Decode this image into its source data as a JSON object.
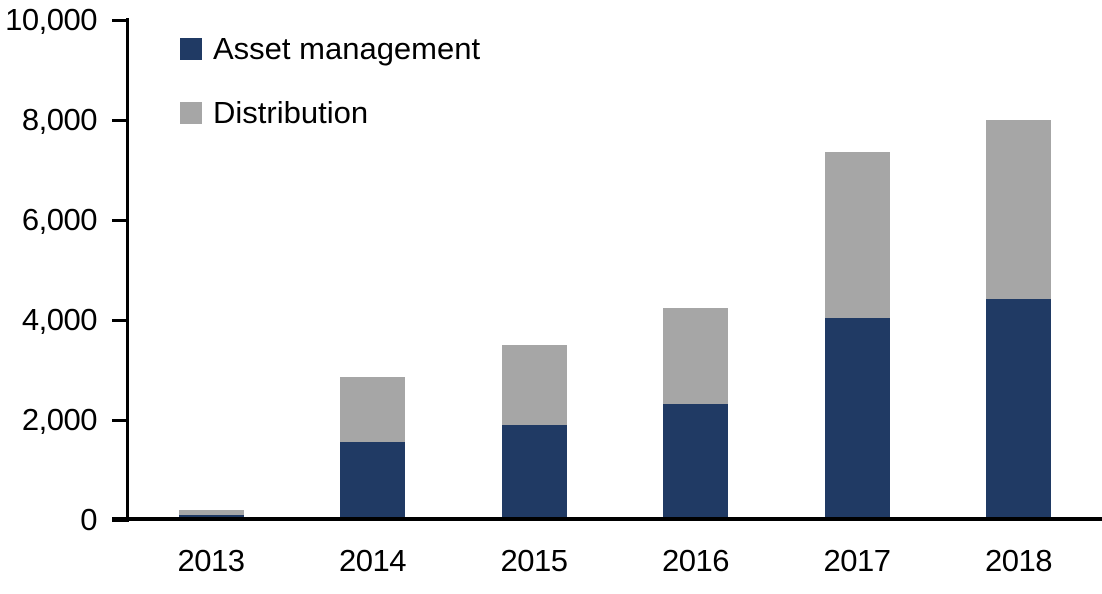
{
  "chart_data": {
    "type": "bar",
    "stacked": true,
    "title": "",
    "xlabel": "",
    "ylabel": "",
    "grid": false,
    "legend_position": "top-left",
    "categories": [
      "2013",
      "2014",
      "2015",
      "2016",
      "2017",
      "2018"
    ],
    "series": [
      {
        "name": "Asset management",
        "color": "#203A64",
        "values": [
          100,
          1560,
          1900,
          2320,
          4040,
          4420
        ]
      },
      {
        "name": "Distribution",
        "color": "#A6A6A6",
        "values": [
          100,
          1300,
          1600,
          1920,
          3330,
          3580
        ]
      }
    ],
    "totals": [
      200,
      2860,
      3500,
      4240,
      7370,
      8000
    ],
    "ylim": [
      0,
      10000
    ],
    "yticks": [
      {
        "value": 0,
        "label": "0"
      },
      {
        "value": 2000,
        "label": "2,000"
      },
      {
        "value": 4000,
        "label": "4,000"
      },
      {
        "value": 6000,
        "label": "6,000"
      },
      {
        "value": 8000,
        "label": "8,000"
      },
      {
        "value": 10000,
        "label": "10,000"
      }
    ],
    "axis_color": "#000000",
    "text_color": "#000000"
  }
}
